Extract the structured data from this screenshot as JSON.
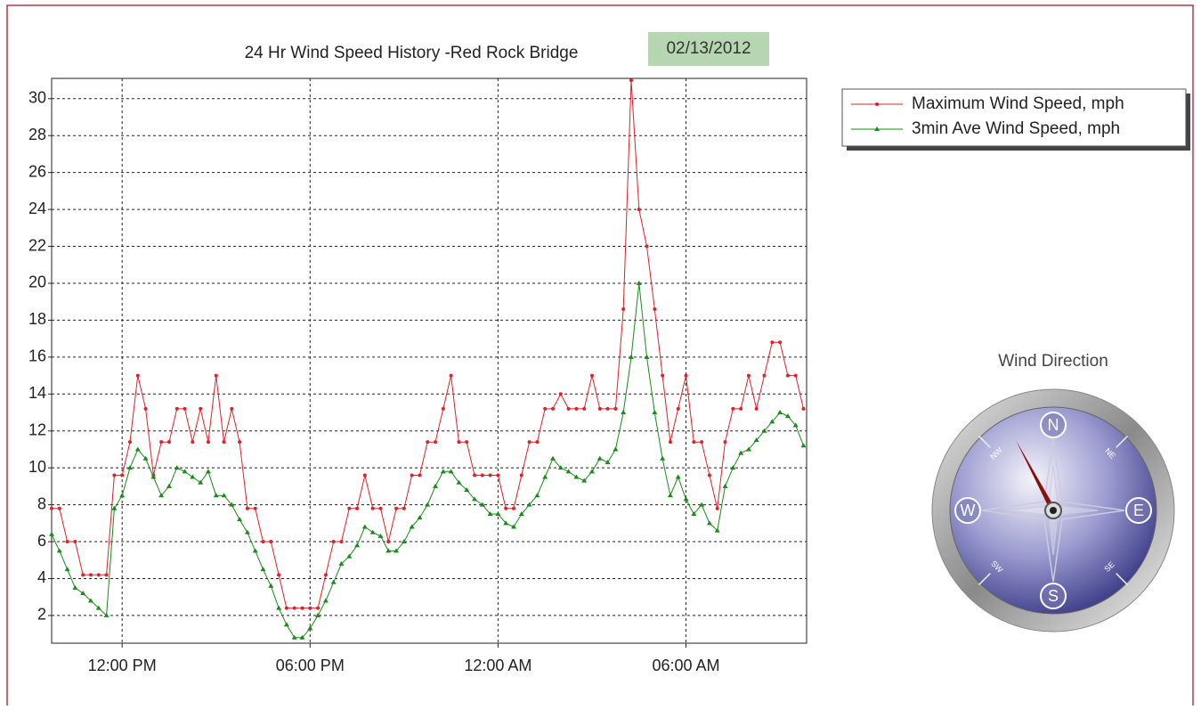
{
  "chart_data": {
    "type": "line",
    "title": "24 Hr Wind Speed History -Red Rock Bridge",
    "date": "02/13/2012",
    "x": [
      9.75,
      10,
      10.25,
      10.5,
      10.75,
      11,
      11.25,
      11.5,
      11.75,
      12,
      12.25,
      12.5,
      12.75,
      13,
      13.25,
      13.5,
      13.75,
      14,
      14.25,
      14.5,
      14.75,
      15,
      15.25,
      15.5,
      15.75,
      16,
      16.25,
      16.5,
      16.75,
      17,
      17.25,
      17.5,
      17.75,
      18,
      18.25,
      18.5,
      18.75,
      19,
      19.25,
      19.5,
      19.75,
      20,
      20.25,
      20.5,
      20.75,
      21,
      21.25,
      21.5,
      21.75,
      22,
      22.25,
      22.5,
      22.75,
      23,
      23.25,
      23.5,
      23.75,
      24,
      24.25,
      24.5,
      24.75,
      25,
      25.25,
      25.5,
      25.75,
      26,
      26.25,
      26.5,
      26.75,
      27,
      27.25,
      27.5,
      27.75,
      28,
      28.25,
      28.5,
      28.75,
      29,
      29.25,
      29.5,
      29.75,
      30,
      30.25,
      30.5,
      30.75,
      31,
      31.25,
      31.5,
      31.75,
      32,
      32.25,
      32.5,
      32.75,
      33,
      33.25,
      33.5,
      33.75
    ],
    "series": [
      {
        "name": "Maximum Wind Speed, mph",
        "color": "#e0202a",
        "marker": "circle",
        "values": [
          7.8,
          7.8,
          6,
          6,
          4.2,
          4.2,
          4.2,
          4.2,
          9.6,
          9.6,
          11.4,
          15,
          13.2,
          9.6,
          11.4,
          11.4,
          13.2,
          13.2,
          11.4,
          13.2,
          11.4,
          15,
          11.4,
          13.2,
          11.4,
          7.8,
          7.8,
          6,
          6,
          4.2,
          2.4,
          2.4,
          2.4,
          2.4,
          2.4,
          4.2,
          6,
          6,
          7.8,
          7.8,
          9.6,
          7.8,
          7.8,
          6,
          7.8,
          7.8,
          9.6,
          9.6,
          11.4,
          11.4,
          13.2,
          15,
          11.4,
          11.4,
          9.6,
          9.6,
          9.6,
          9.6,
          7.8,
          7.8,
          9.6,
          11.4,
          11.4,
          13.2,
          13.2,
          14,
          13.2,
          13.2,
          13.2,
          15,
          13.2,
          13.2,
          13.2,
          18.6,
          31,
          24,
          22,
          18.6,
          15,
          11.4,
          13.2,
          15,
          11.4,
          11.4,
          9.6,
          7.8,
          11.4,
          13.2,
          13.2,
          15,
          13.2,
          15,
          16.8,
          16.8,
          15,
          15,
          13.2
        ]
      },
      {
        "name": "3min Ave Wind Speed, mph",
        "color": "#1a8a1a",
        "marker": "triangle",
        "values": [
          6.4,
          5.5,
          4.5,
          3.5,
          3.2,
          2.8,
          2.4,
          2,
          7.8,
          8.5,
          10,
          11,
          10.5,
          9.5,
          8.5,
          9,
          10,
          9.8,
          9.5,
          9.2,
          9.8,
          8.5,
          8.5,
          8,
          7.2,
          6.5,
          5.5,
          4.5,
          3.6,
          2.4,
          1.5,
          0.8,
          0.8,
          1.3,
          2,
          2.8,
          3.8,
          4.8,
          5.2,
          5.8,
          6.8,
          6.5,
          6.3,
          5.5,
          5.5,
          6,
          6.8,
          7.3,
          8,
          9,
          9.8,
          9.8,
          9.2,
          8.8,
          8.3,
          8,
          7.5,
          7.5,
          7,
          6.8,
          7.5,
          8,
          8.5,
          9.5,
          10.5,
          10,
          9.8,
          9.5,
          9.3,
          9.8,
          10.5,
          10.3,
          11,
          13,
          16,
          20,
          16,
          13,
          10.5,
          8.5,
          9.5,
          8.3,
          7.5,
          8,
          7,
          6.6,
          9,
          10,
          10.8,
          11,
          11.5,
          12,
          12.5,
          13,
          12.8,
          12.3,
          11.2
        ]
      }
    ],
    "xlim": [
      9.75,
      33.85
    ],
    "xticks": [
      {
        "value": 12,
        "label": "12:00 PM"
      },
      {
        "value": 18,
        "label": "06:00 PM"
      },
      {
        "value": 24,
        "label": "12:00 AM"
      },
      {
        "value": 30,
        "label": "06:00 AM"
      }
    ],
    "ylim": [
      0.5,
      31.1
    ],
    "yticks": [
      2,
      4,
      6,
      8,
      10,
      12,
      14,
      16,
      18,
      20,
      22,
      24,
      26,
      28,
      30
    ],
    "grid": true,
    "legend": "top-right"
  },
  "wind_direction": {
    "title": "Wind Direction",
    "needle_degrees": 152,
    "cardinals": [
      "N",
      "E",
      "S",
      "W"
    ],
    "intercardinals": [
      "NE",
      "SE",
      "SW",
      "NW"
    ]
  }
}
